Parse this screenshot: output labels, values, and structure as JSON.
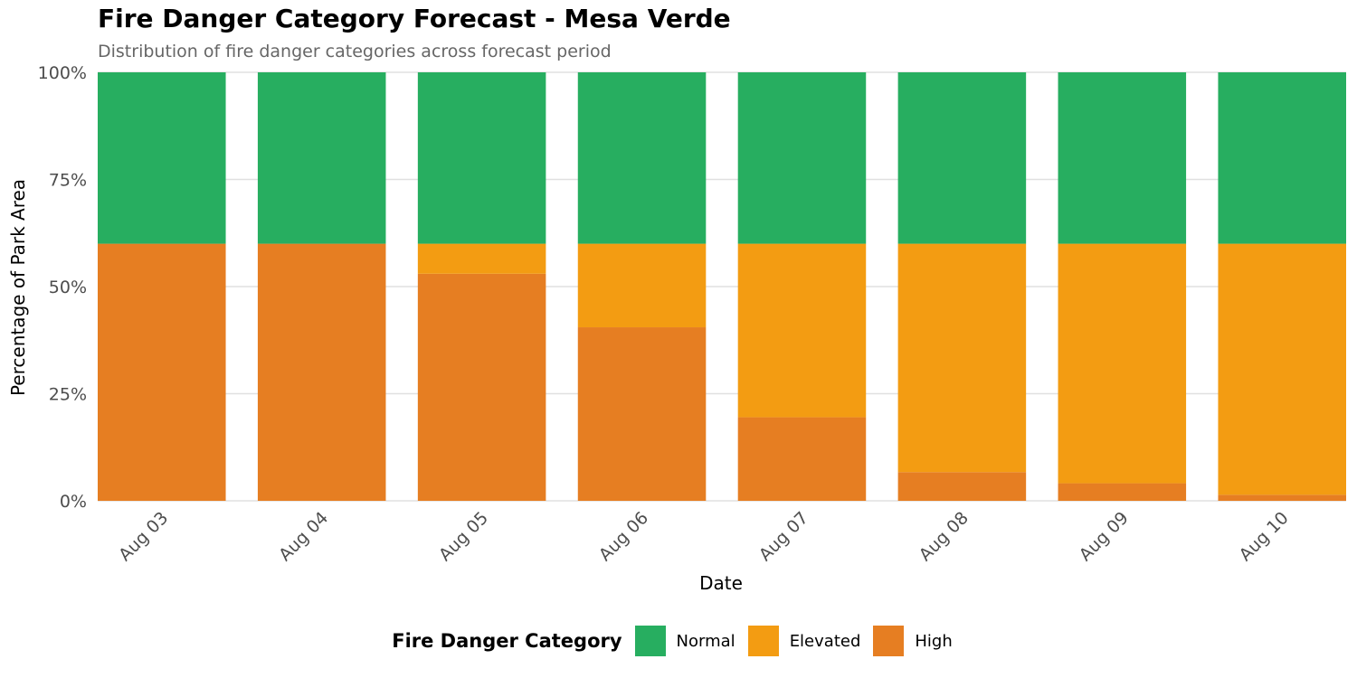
{
  "title": "Fire Danger Category Forecast - Mesa Verde",
  "subtitle": "Distribution of fire danger categories across forecast period",
  "legend_title": "Fire Danger Category",
  "colors": {
    "Normal": "#27ae60",
    "Elevated": "#f39c12",
    "High": "#e67e22"
  },
  "chart_data": {
    "type": "bar",
    "stacked": true,
    "xlabel": "Date",
    "ylabel": "Percentage of Park Area",
    "ylim": [
      0,
      100
    ],
    "y_ticks": [
      "0%",
      "25%",
      "50%",
      "75%",
      "100%"
    ],
    "y_tick_values": [
      0,
      25,
      50,
      75,
      100
    ],
    "grid": true,
    "legend_position": "bottom",
    "categories": [
      "Aug 03",
      "Aug 04",
      "Aug 05",
      "Aug 06",
      "Aug 07",
      "Aug 08",
      "Aug 09",
      "Aug 10"
    ],
    "series": [
      {
        "name": "High",
        "values": [
          60,
          60,
          53,
          40.5,
          19.5,
          6.7,
          4.1,
          1.4
        ]
      },
      {
        "name": "Elevated",
        "values": [
          0,
          0,
          7,
          19.5,
          40.5,
          53.3,
          55.9,
          58.6
        ]
      },
      {
        "name": "Normal",
        "values": [
          40,
          40,
          40,
          40,
          40,
          40,
          40,
          40
        ]
      }
    ]
  }
}
